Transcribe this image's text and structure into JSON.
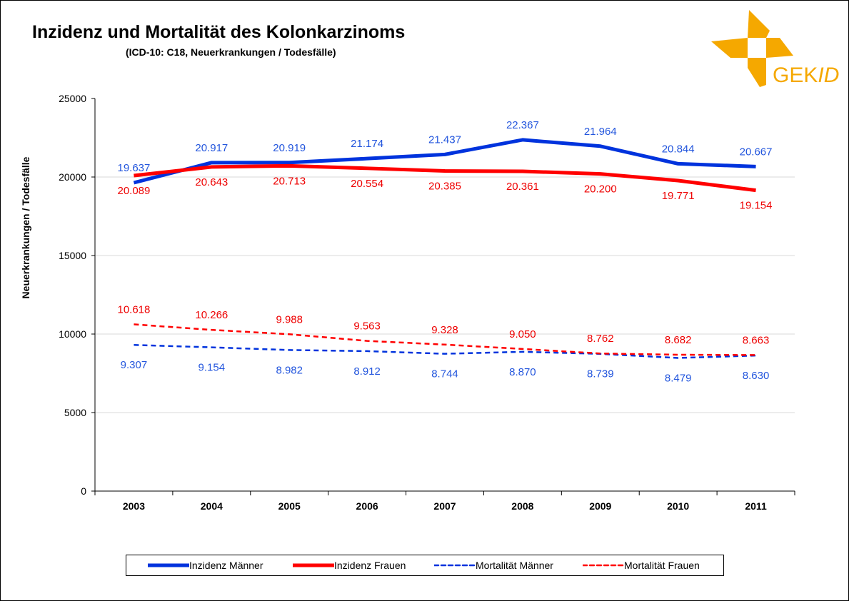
{
  "chart_data": {
    "type": "line",
    "title": "Inzidenz und Mortalität des Kolonkarzinoms",
    "subtitle": "(ICD-10: C18, Neuerkrankungen  / Todesfälle)",
    "xlabel": "",
    "ylabel": "Neuerkrankungen / Todesfälle",
    "ylim": [
      0,
      25000
    ],
    "yticks": [
      "0",
      "5000",
      "10000",
      "15000",
      "20000",
      "25000"
    ],
    "categories": [
      "2003",
      "2004",
      "2005",
      "2006",
      "2007",
      "2008",
      "2009",
      "2010",
      "2011"
    ],
    "grid": "horizontal",
    "legend_position": "bottom",
    "series": [
      {
        "name": "Inzidenz Männer",
        "color": "#0033DD",
        "style": "solid",
        "values": [
          19637,
          20917,
          20919,
          21174,
          21437,
          22367,
          21964,
          20844,
          20667
        ],
        "labels": [
          "19.637",
          "20.917",
          "20.919",
          "21.174",
          "21.437",
          "22.367",
          "21.964",
          "20.844",
          "20.667"
        ],
        "label_color": "#2255DD"
      },
      {
        "name": "Inzidenz Frauen",
        "color": "#FF0000",
        "style": "solid",
        "values": [
          20089,
          20643,
          20713,
          20554,
          20385,
          20361,
          20200,
          19771,
          19154
        ],
        "labels": [
          "20.089",
          "20.643",
          "20.713",
          "20.554",
          "20.385",
          "20.361",
          "20.200",
          "19.771",
          "19.154"
        ],
        "label_color": "#EE0000"
      },
      {
        "name": "Mortalität Männer",
        "color": "#0033DD",
        "style": "dashed",
        "values": [
          9307,
          9154,
          8982,
          8912,
          8744,
          8870,
          8739,
          8479,
          8630
        ],
        "labels": [
          "9.307",
          "9.154",
          "8.982",
          "8.912",
          "8.744",
          "8.870",
          "8.739",
          "8.479",
          "8.630"
        ],
        "label_color": "#2255DD"
      },
      {
        "name": "Mortalität Frauen",
        "color": "#FF0000",
        "style": "dashed",
        "values": [
          10618,
          10266,
          9988,
          9563,
          9328,
          9050,
          8762,
          8682,
          8663
        ],
        "labels": [
          "10.618",
          "10.266",
          "9.988",
          "9.563",
          "9.328",
          "9.050",
          "8.762",
          "8.682",
          "8.663"
        ],
        "label_color": "#EE0000"
      }
    ]
  },
  "logo": {
    "text": "GEKID",
    "color": "#F5A800"
  }
}
